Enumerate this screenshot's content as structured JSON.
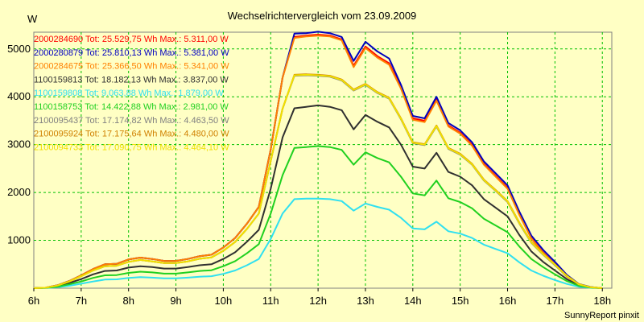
{
  "chart_data": {
    "type": "line",
    "title": "Wechselrichtervergleich vom 23.09.2009",
    "ylabel": "W",
    "footer": "SunnyReport pinxit",
    "grid": true,
    "legend_position": "top-left",
    "xlim": [
      6,
      18.2
    ],
    "ylim": [
      0,
      5350
    ],
    "x_ticks": [
      {
        "v": 6,
        "label": "6h"
      },
      {
        "v": 7,
        "label": "7h"
      },
      {
        "v": 8,
        "label": "8h"
      },
      {
        "v": 9,
        "label": "9h"
      },
      {
        "v": 10,
        "label": "10h"
      },
      {
        "v": 11,
        "label": "11h"
      },
      {
        "v": 12,
        "label": "12h"
      },
      {
        "v": 13,
        "label": "13h"
      },
      {
        "v": 14,
        "label": "14h"
      },
      {
        "v": 15,
        "label": "15h"
      },
      {
        "v": 16,
        "label": "16h"
      },
      {
        "v": 17,
        "label": "17h"
      },
      {
        "v": 18,
        "label": "18h"
      }
    ],
    "y_ticks": [
      {
        "v": 1000,
        "label": "1000"
      },
      {
        "v": 2000,
        "label": "2000"
      },
      {
        "v": 3000,
        "label": "3000"
      },
      {
        "v": 4000,
        "label": "4000"
      },
      {
        "v": 5000,
        "label": "5000"
      }
    ],
    "x": [
      6.0,
      6.25,
      6.5,
      6.75,
      7.0,
      7.25,
      7.5,
      7.75,
      8.0,
      8.25,
      8.5,
      8.75,
      9.0,
      9.25,
      9.5,
      9.75,
      10.0,
      10.25,
      10.5,
      10.75,
      11.0,
      11.25,
      11.5,
      11.75,
      12.0,
      12.25,
      12.5,
      12.75,
      13.0,
      13.25,
      13.5,
      13.75,
      14.0,
      14.25,
      14.5,
      14.75,
      15.0,
      15.25,
      15.5,
      15.75,
      16.0,
      16.25,
      16.5,
      16.75,
      17.0,
      17.25,
      17.5,
      17.75,
      18.0
    ],
    "series": [
      {
        "name": "2000284690 Tot: 25.529,75 Wh Max.: 5.311,00 W",
        "color": "#ff0000",
        "values": [
          0,
          10,
          60,
          150,
          270,
          400,
          500,
          510,
          600,
          640,
          610,
          570,
          570,
          610,
          670,
          700,
          850,
          1050,
          1350,
          1700,
          2900,
          4400,
          5250,
          5280,
          5300,
          5280,
          5200,
          4650,
          5050,
          4850,
          4700,
          4200,
          3550,
          3500,
          3950,
          3400,
          3250,
          3000,
          2600,
          2350,
          2100,
          1550,
          1050,
          750,
          500,
          250,
          80,
          20,
          0
        ]
      },
      {
        "name": "2000280879 Tot: 25.810,13 Wh Max.: 5.381,00 W",
        "color": "#0000c0",
        "values": [
          0,
          10,
          60,
          150,
          270,
          400,
          500,
          510,
          600,
          640,
          610,
          570,
          570,
          610,
          670,
          700,
          850,
          1050,
          1350,
          1700,
          2900,
          4400,
          5320,
          5330,
          5360,
          5330,
          5250,
          4750,
          5150,
          4950,
          4800,
          4250,
          3600,
          3550,
          4000,
          3450,
          3300,
          3050,
          2650,
          2400,
          2150,
          1600,
          1100,
          800,
          550,
          280,
          90,
          25,
          0
        ]
      },
      {
        "name": "2000284675 Tot: 25.366,50 Wh Max.: 5.341,00 W",
        "color": "#ff8000",
        "values": [
          0,
          10,
          60,
          150,
          270,
          400,
          500,
          510,
          600,
          640,
          610,
          570,
          570,
          610,
          670,
          700,
          850,
          1050,
          1350,
          1700,
          2900,
          4400,
          5230,
          5260,
          5280,
          5260,
          5180,
          4620,
          5020,
          4820,
          4670,
          4170,
          3520,
          3470,
          3920,
          3380,
          3230,
          2980,
          2580,
          2330,
          2080,
          1530,
          1040,
          740,
          490,
          240,
          80,
          20,
          0
        ]
      },
      {
        "name": "1100159813 Tot: 18.182,13 Wh Max.: 3.837,00 W",
        "color": "#303030",
        "values": [
          0,
          8,
          40,
          110,
          190,
          290,
          360,
          370,
          430,
          460,
          440,
          410,
          410,
          440,
          480,
          500,
          610,
          750,
          970,
          1220,
          2080,
          3150,
          3760,
          3790,
          3820,
          3790,
          3720,
          3320,
          3620,
          3480,
          3360,
          3000,
          2540,
          2500,
          2830,
          2430,
          2330,
          2150,
          1860,
          1680,
          1500,
          1110,
          770,
          550,
          370,
          190,
          60,
          15,
          0
        ]
      },
      {
        "name": "1100159808 Tot: 9.063,88 Wh Max.: 1.879,00 W",
        "color": "#30e0f0",
        "values": [
          0,
          4,
          20,
          50,
          95,
          140,
          180,
          185,
          215,
          230,
          220,
          205,
          205,
          220,
          240,
          250,
          300,
          370,
          480,
          610,
          1030,
          1560,
          1860,
          1870,
          1870,
          1860,
          1820,
          1620,
          1770,
          1700,
          1640,
          1470,
          1250,
          1230,
          1390,
          1190,
          1140,
          1050,
          910,
          820,
          730,
          540,
          370,
          260,
          170,
          90,
          30,
          8,
          0
        ]
      },
      {
        "name": "1100158753 Tot: 14.422,88 Wh Max.: 2.981,00 W",
        "color": "#20d020",
        "values": [
          0,
          6,
          30,
          80,
          140,
          215,
          270,
          275,
          320,
          345,
          330,
          305,
          305,
          330,
          360,
          375,
          460,
          565,
          730,
          920,
          1560,
          2360,
          2930,
          2950,
          2970,
          2950,
          2890,
          2580,
          2840,
          2720,
          2630,
          2330,
          1980,
          1940,
          2250,
          1880,
          1800,
          1670,
          1450,
          1310,
          1170,
          870,
          610,
          440,
          290,
          150,
          50,
          12,
          0
        ]
      },
      {
        "name": "2100095437 Tot: 17.174,82 Wh Max.: 4.463,50 W",
        "color": "#808080",
        "values": [
          0,
          10,
          55,
          140,
          250,
          370,
          460,
          470,
          550,
          590,
          560,
          525,
          525,
          560,
          615,
          645,
          780,
          965,
          1240,
          1560,
          2660,
          3750,
          4440,
          4450,
          4440,
          4420,
          4340,
          4130,
          4250,
          4080,
          3960,
          3530,
          3030,
          2990,
          3380,
          2910,
          2790,
          2580,
          2250,
          2030,
          1800,
          1350,
          950,
          700,
          480,
          250,
          80,
          20,
          0
        ]
      },
      {
        "name": "2100095924 Tot: 17.175,64 Wh Max.: 4.480,00 W",
        "color": "#d08000",
        "values": [
          0,
          10,
          55,
          140,
          250,
          370,
          460,
          470,
          550,
          590,
          560,
          525,
          525,
          560,
          615,
          645,
          780,
          965,
          1240,
          1560,
          2660,
          3750,
          4460,
          4470,
          4460,
          4440,
          4360,
          4150,
          4270,
          4100,
          3980,
          3550,
          3050,
          3010,
          3400,
          2930,
          2810,
          2600,
          2270,
          2050,
          1820,
          1370,
          970,
          720,
          500,
          260,
          85,
          20,
          0
        ]
      },
      {
        "name": "2100094733 Tot: 17.090,75 Wh Max.: 4.464,10 W",
        "color": "#f0e000",
        "values": [
          0,
          10,
          55,
          140,
          250,
          370,
          460,
          470,
          550,
          590,
          560,
          525,
          525,
          560,
          615,
          645,
          780,
          965,
          1240,
          1560,
          2660,
          3750,
          4450,
          4460,
          4450,
          4430,
          4350,
          4140,
          4260,
          4090,
          3970,
          3540,
          3040,
          3000,
          3390,
          2920,
          2800,
          2590,
          2260,
          2040,
          1810,
          1360,
          960,
          710,
          490,
          255,
          82,
          20,
          0
        ]
      }
    ]
  }
}
